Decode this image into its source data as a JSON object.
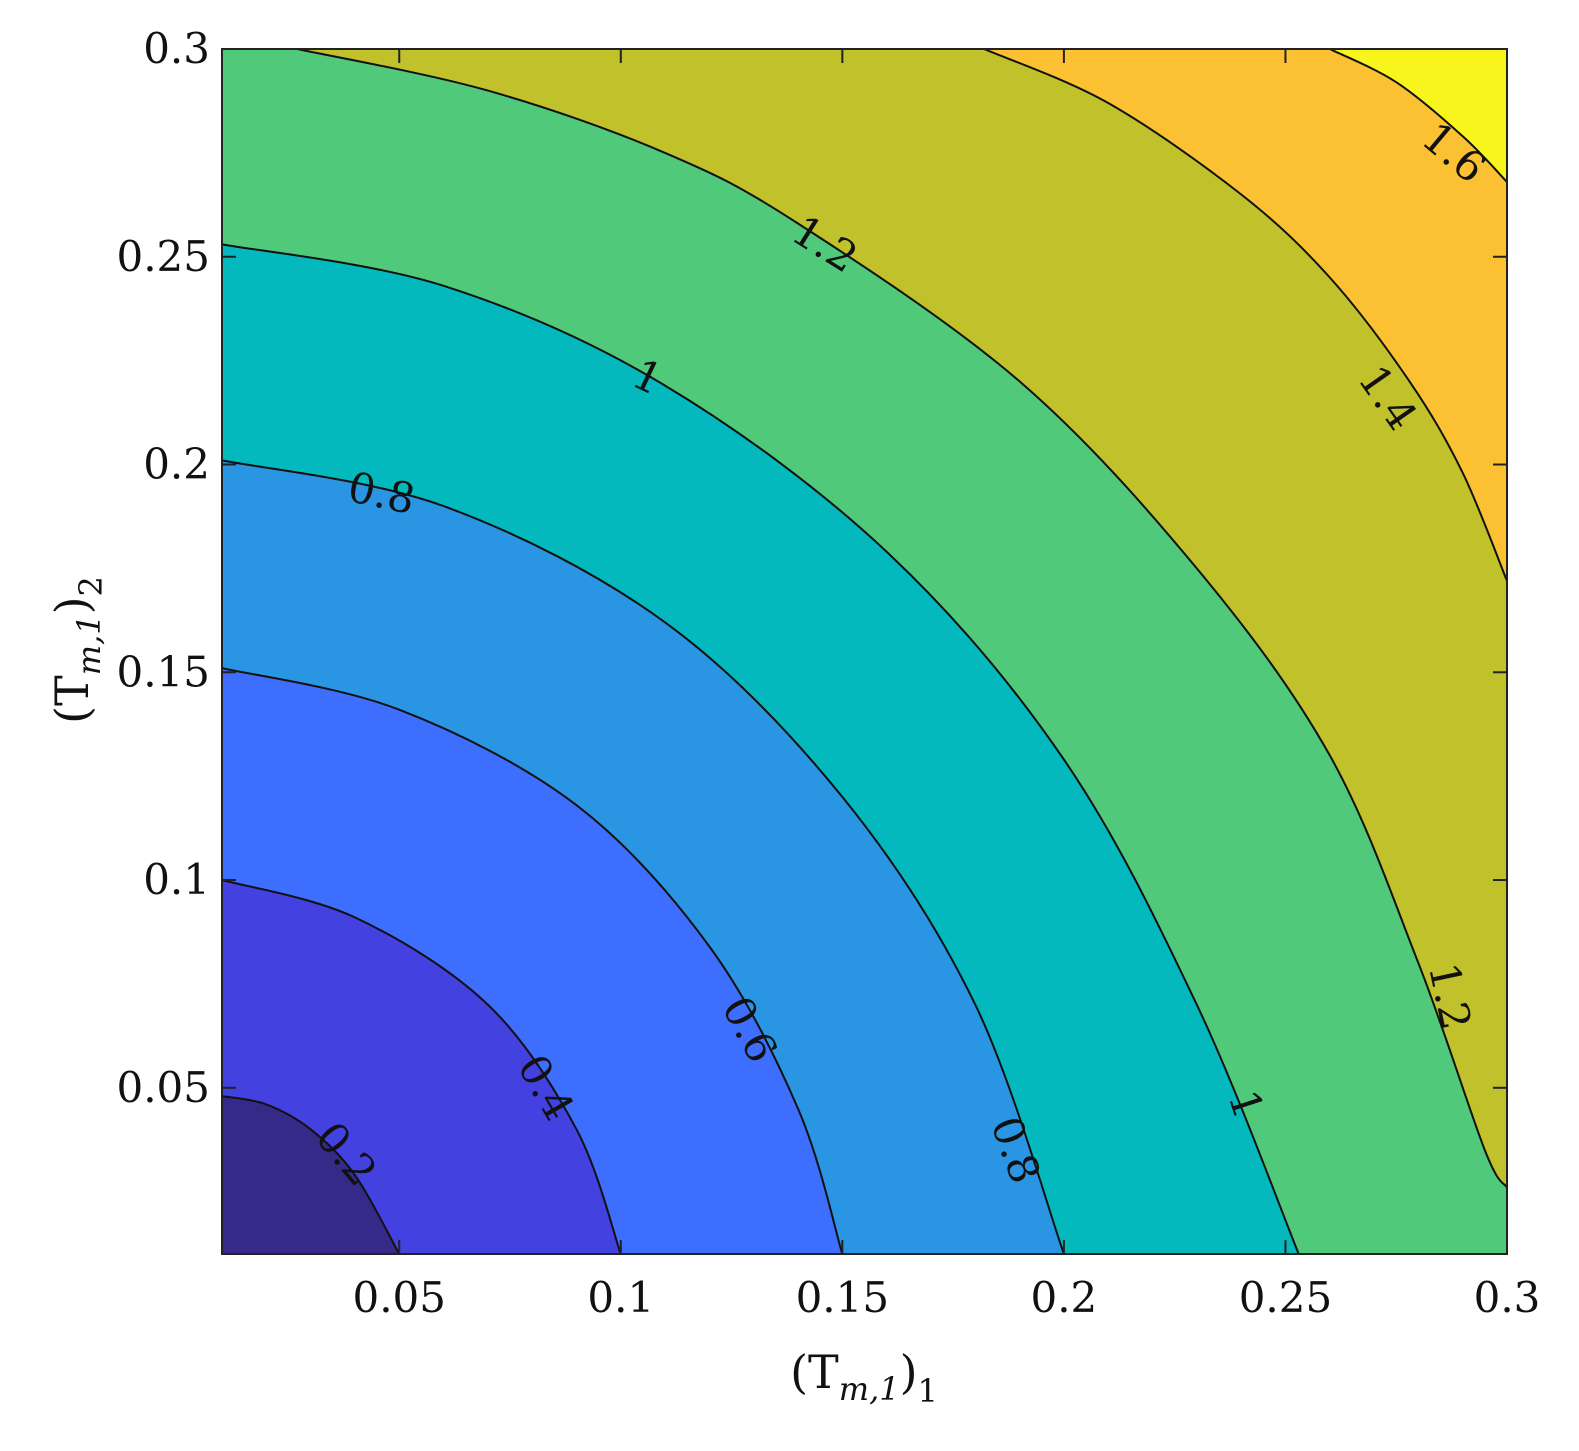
{
  "chart_data": {
    "type": "contour",
    "xlabel": {
      "base": "(T",
      "sub_inner": "m,1",
      "close": ")",
      "sub_outer": "1"
    },
    "ylabel": {
      "base": "(T",
      "sub_inner": "m,1",
      "close": ")",
      "sub_outer": "2"
    },
    "xlim": [
      0.01,
      0.3
    ],
    "ylim": [
      0.01,
      0.3
    ],
    "x_ticks": [
      0.05,
      0.1,
      0.15,
      0.2,
      0.25,
      0.3
    ],
    "y_ticks": [
      0.05,
      0.1,
      0.15,
      0.2,
      0.25,
      0.3
    ],
    "x_tick_labels": [
      "0.05",
      "0.1",
      "0.15",
      "0.2",
      "0.25",
      "0.3"
    ],
    "y_tick_labels": [
      "0.05",
      "0.1",
      "0.15",
      "0.2",
      "0.25",
      "0.3"
    ],
    "levels": [
      0.2,
      0.4,
      0.6,
      0.8,
      1.0,
      1.2,
      1.4,
      1.6
    ],
    "level_colors": [
      "#352a87",
      "#4341e0",
      "#3d6efd",
      "#2a96e3",
      "#03b9bd",
      "#51c97a",
      "#c1c12c",
      "#fbc133",
      "#f7f51b"
    ],
    "contour_lines": [
      {
        "level": 0.2,
        "points": [
          [
            0.01,
            0.048
          ],
          [
            0.02,
            0.046
          ],
          [
            0.03,
            0.04
          ],
          [
            0.04,
            0.029
          ],
          [
            0.05,
            0.01
          ]
        ]
      },
      {
        "level": 0.4,
        "points": [
          [
            0.01,
            0.1
          ],
          [
            0.04,
            0.091
          ],
          [
            0.07,
            0.07
          ],
          [
            0.09,
            0.04
          ],
          [
            0.1,
            0.01
          ]
        ]
      },
      {
        "level": 0.6,
        "points": [
          [
            0.01,
            0.151
          ],
          [
            0.05,
            0.141
          ],
          [
            0.09,
            0.118
          ],
          [
            0.12,
            0.084
          ],
          [
            0.14,
            0.045
          ],
          [
            0.15,
            0.01
          ]
        ]
      },
      {
        "level": 0.8,
        "points": [
          [
            0.01,
            0.201
          ],
          [
            0.06,
            0.19
          ],
          [
            0.11,
            0.162
          ],
          [
            0.15,
            0.12
          ],
          [
            0.18,
            0.07
          ],
          [
            0.2,
            0.01
          ]
        ]
      },
      {
        "level": 1.0,
        "points": [
          [
            0.01,
            0.253
          ],
          [
            0.06,
            0.243
          ],
          [
            0.11,
            0.219
          ],
          [
            0.16,
            0.179
          ],
          [
            0.2,
            0.129
          ],
          [
            0.23,
            0.07
          ],
          [
            0.253,
            0.01
          ]
        ]
      },
      {
        "level": 1.2,
        "points": [
          [
            0.027,
            0.3
          ],
          [
            0.07,
            0.29
          ],
          [
            0.11,
            0.275
          ],
          [
            0.14,
            0.258
          ],
          [
            0.19,
            0.22
          ],
          [
            0.23,
            0.175
          ],
          [
            0.26,
            0.13
          ],
          [
            0.28,
            0.08
          ],
          [
            0.295,
            0.035
          ],
          [
            0.3,
            0.026
          ]
        ]
      },
      {
        "level": 1.4,
        "points": [
          [
            0.182,
            0.3
          ],
          [
            0.21,
            0.287
          ],
          [
            0.24,
            0.265
          ],
          [
            0.26,
            0.245
          ],
          [
            0.278,
            0.22
          ],
          [
            0.29,
            0.198
          ],
          [
            0.3,
            0.172
          ]
        ]
      },
      {
        "level": 1.6,
        "points": [
          [
            0.26,
            0.3
          ],
          [
            0.275,
            0.292
          ],
          [
            0.29,
            0.279
          ],
          [
            0.3,
            0.268
          ]
        ]
      }
    ],
    "contour_labels": [
      {
        "text": "0.2",
        "x": 0.038,
        "y": 0.034,
        "angle": 50
      },
      {
        "text": "0.4",
        "x": 0.083,
        "y": 0.05,
        "angle": 60
      },
      {
        "text": "0.6",
        "x": 0.129,
        "y": 0.064,
        "angle": 62
      },
      {
        "text": "0.8",
        "x": 0.046,
        "y": 0.193,
        "angle": 12
      },
      {
        "text": "0.8",
        "x": 0.189,
        "y": 0.035,
        "angle": 70
      },
      {
        "text": "1",
        "x": 0.106,
        "y": 0.221,
        "angle": 25
      },
      {
        "text": "1",
        "x": 0.241,
        "y": 0.046,
        "angle": 72
      },
      {
        "text": "1.2",
        "x": 0.146,
        "y": 0.253,
        "angle": 32
      },
      {
        "text": "1.2",
        "x": 0.287,
        "y": 0.072,
        "angle": 78
      },
      {
        "text": "1.4",
        "x": 0.273,
        "y": 0.216,
        "angle": 55
      },
      {
        "text": "1.6",
        "x": 0.288,
        "y": 0.275,
        "angle": 40
      }
    ],
    "grid": false
  }
}
